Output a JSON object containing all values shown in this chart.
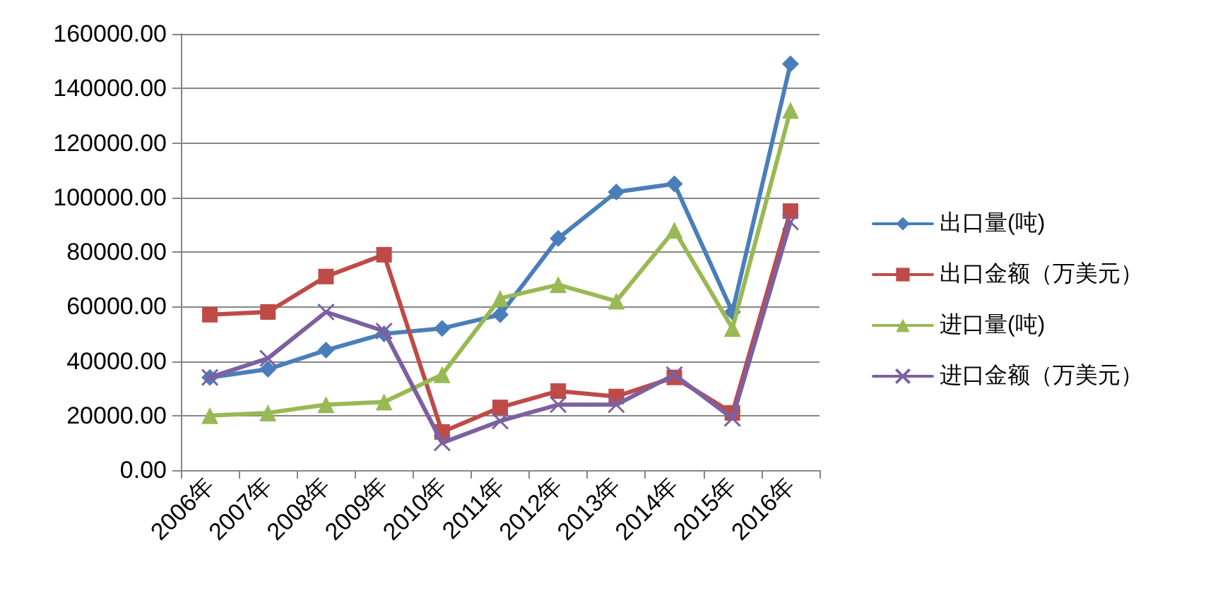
{
  "chart_data": {
    "type": "line",
    "categories": [
      "2006年",
      "2007年",
      "2008年",
      "2009年",
      "2010年",
      "2011年",
      "2012年",
      "2013年",
      "2014年",
      "2015年",
      "2016年"
    ],
    "series": [
      {
        "name": "出口量(吨)",
        "color": "#4a7ebb",
        "marker": "diamond",
        "values": [
          34000,
          37000,
          44000,
          50000,
          52000,
          57000,
          85000,
          102000,
          105000,
          58000,
          149000
        ]
      },
      {
        "name": "出口金额（万美元）",
        "color": "#be4b48",
        "marker": "square",
        "values": [
          57000,
          58000,
          71000,
          79000,
          14000,
          23000,
          29000,
          27000,
          34000,
          21000,
          95000
        ]
      },
      {
        "name": "进口量(吨)",
        "color": "#98b954",
        "marker": "triangle",
        "values": [
          20000,
          21000,
          24000,
          25000,
          35000,
          63000,
          68000,
          62000,
          88000,
          52000,
          132000
        ]
      },
      {
        "name": "进口金额（万美元）",
        "color": "#7d60a0",
        "marker": "cross",
        "values": [
          34000,
          41000,
          58000,
          51000,
          10000,
          18000,
          24000,
          24000,
          35000,
          19000,
          91000
        ]
      }
    ],
    "ylim": [
      0,
      160000
    ],
    "yticks": [
      {
        "value": 0,
        "label": "0.00"
      },
      {
        "value": 20000,
        "label": "20000.00"
      },
      {
        "value": 40000,
        "label": "40000.00"
      },
      {
        "value": 60000,
        "label": "60000.00"
      },
      {
        "value": 80000,
        "label": "80000.00"
      },
      {
        "value": 100000,
        "label": "100000.00"
      },
      {
        "value": 120000,
        "label": "120000.00"
      },
      {
        "value": 140000,
        "label": "140000.00"
      },
      {
        "value": 160000,
        "label": "160000.00"
      }
    ],
    "grid": "y",
    "legend": "right",
    "line_style": "solid"
  }
}
